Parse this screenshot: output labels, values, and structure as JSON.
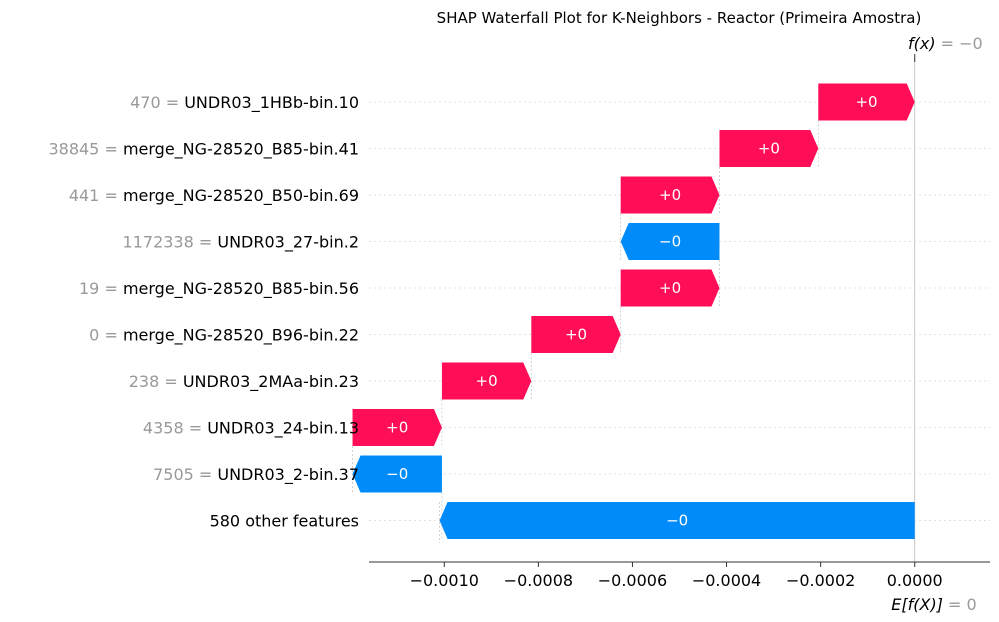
{
  "chart_data": {
    "type": "waterfall",
    "title": "SHAP Waterfall Plot for K-Neighbors - Reactor (Primeira Amostra)",
    "xlim": [
      -0.00116,
      0.00016
    ],
    "xticks": [
      -0.001,
      -0.0008,
      -0.0006,
      -0.0004,
      -0.0002,
      0.0
    ],
    "xtick_labels": [
      "−0.0010",
      "−0.0008",
      "−0.0006",
      "−0.0004",
      "−0.0002",
      "0.0000"
    ],
    "base_value": 0.0,
    "base_label": "E[f(X)]",
    "base_value_label": "= 0",
    "output_value": 0.0,
    "output_label": "f(x)",
    "output_value_label": "= −0",
    "features": [
      {
        "value": "470",
        "name": "UNDR03_1HBb-bin.10",
        "start": -0.000205,
        "end": 0.0,
        "label": "+0",
        "sign": "pos"
      },
      {
        "value": "38845",
        "name": "merge_NG-28520_B85-bin.41",
        "start": -0.000415,
        "end": -0.000205,
        "label": "+0",
        "sign": "pos"
      },
      {
        "value": "441",
        "name": "merge_NG-28520_B50-bin.69",
        "start": -0.000625,
        "end": -0.000415,
        "label": "+0",
        "sign": "pos"
      },
      {
        "value": "1172338",
        "name": "UNDR03_27-bin.2",
        "start": -0.000415,
        "end": -0.000625,
        "label": "−0",
        "sign": "neg"
      },
      {
        "value": "19",
        "name": "merge_NG-28520_B85-bin.56",
        "start": -0.000625,
        "end": -0.000415,
        "label": "+0",
        "sign": "pos"
      },
      {
        "value": "0",
        "name": "merge_NG-28520_B96-bin.22",
        "start": -0.000815,
        "end": -0.000625,
        "label": "+0",
        "sign": "pos"
      },
      {
        "value": "238",
        "name": "UNDR03_2MAa-bin.23",
        "start": -0.001005,
        "end": -0.000815,
        "label": "+0",
        "sign": "pos"
      },
      {
        "value": "4358",
        "name": "UNDR03_24-bin.13",
        "start": -0.001195,
        "end": -0.001005,
        "label": "+0",
        "sign": "pos"
      },
      {
        "value": "7505",
        "name": "UNDR03_2-bin.37",
        "start": -0.001005,
        "end": -0.001195,
        "label": "−0",
        "sign": "neg"
      },
      {
        "value": "",
        "name": "580 other features",
        "start": 0.0,
        "end": -0.00101,
        "label": "−0",
        "sign": "neg"
      }
    ],
    "colors": {
      "positive": "#ff0d57",
      "negative": "#008bfb"
    }
  }
}
